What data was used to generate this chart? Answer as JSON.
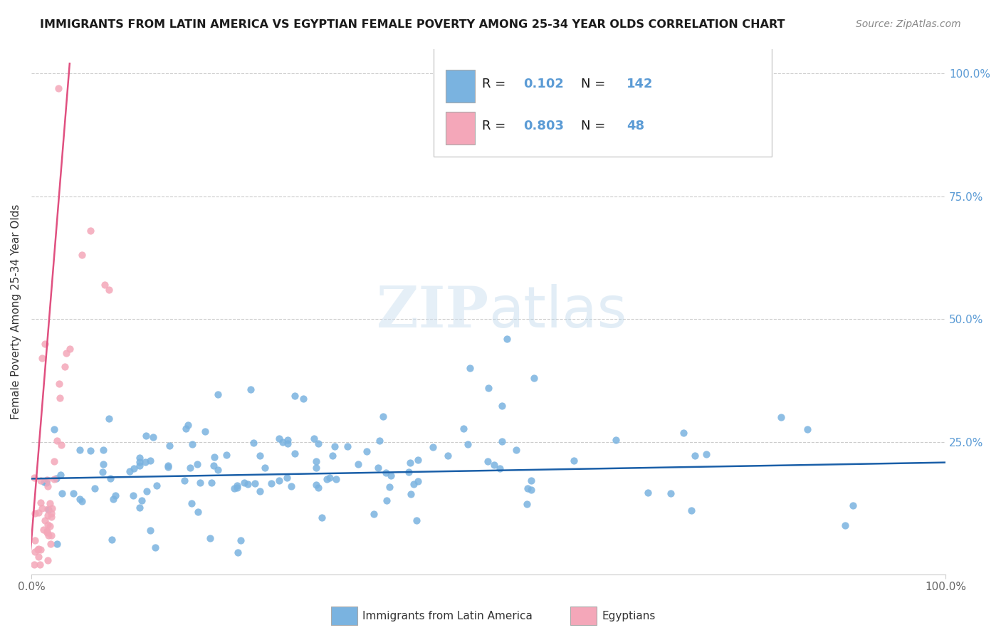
{
  "title": "IMMIGRANTS FROM LATIN AMERICA VS EGYPTIAN FEMALE POVERTY AMONG 25-34 YEAR OLDS CORRELATION CHART",
  "source": "Source: ZipAtlas.com",
  "ylabel": "Female Poverty Among 25-34 Year Olds",
  "xlim": [
    0.0,
    1.0
  ],
  "ylim": [
    -0.02,
    1.05
  ],
  "blue_R": "0.102",
  "blue_N": "142",
  "pink_R": "0.803",
  "pink_N": "48",
  "blue_color": "#7ab3e0",
  "pink_color": "#f4a7b9",
  "blue_line_color": "#1a5fa8",
  "pink_line_color": "#e05080",
  "blue_text_color": "#5b9bd5",
  "label_color": "#5b9bd5",
  "legend_label_blue": "Immigrants from Latin America",
  "legend_label_pink": "Egyptians",
  "background_color": "#ffffff",
  "grid_color": "#cccccc",
  "title_color": "#1a1a1a",
  "source_color": "#888888",
  "ylabel_color": "#333333"
}
